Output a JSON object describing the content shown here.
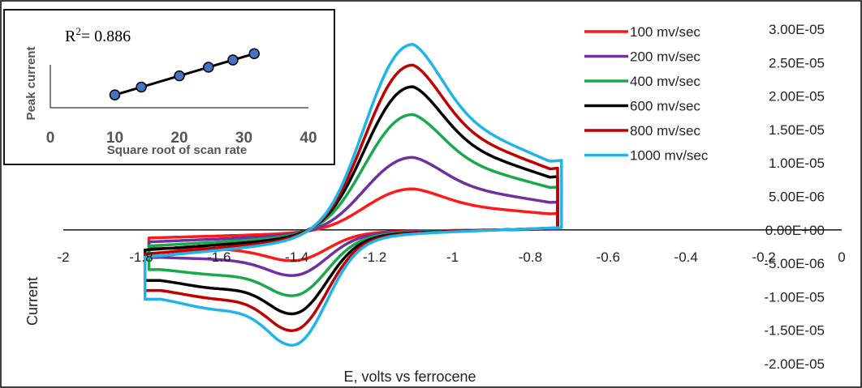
{
  "chart_data": [
    {
      "type": "line",
      "xlabel": "E, volts vs ferrocene",
      "ylabel": "Current",
      "xlim": [
        -2,
        0
      ],
      "ylim": [
        -2e-05,
        3e-05
      ],
      "x_ticks": [
        "-2",
        "-1.8",
        "-1.6",
        "-1.4",
        "-1.2",
        "-1",
        "-0.8",
        "-0.6",
        "-0.4",
        "-0.2",
        "0"
      ],
      "y_ticks": [
        "3.00E-05",
        "2.50E-05",
        "2.00E-05",
        "1.50E-05",
        "1.00E-05",
        "5.00E-06",
        "0.00E+00",
        "-5.00E-06",
        "-1.00E-05",
        "-1.50E-05",
        "-2.00E-05"
      ],
      "legend_position": "top-right",
      "series": [
        {
          "name": "100 mv/sec",
          "color": "#ff1a1a",
          "ia": 5.5e-06,
          "ic": -4.2e-06,
          "ic2": -2.6e-06,
          "sw": 2e-06,
          "vt": -1.78,
          "ve": -0.73
        },
        {
          "name": "200 mv/sec",
          "color": "#7030a0",
          "ia": 9.7e-06,
          "ic": -6.2e-06,
          "ic2": -4.2e-06,
          "sw": 3e-06,
          "vt": -1.78,
          "ve": -0.73
        },
        {
          "name": "400 mv/sec",
          "color": "#1aa84d",
          "ia": 1.54e-05,
          "ic": -9e-06,
          "ic2": -6.8e-06,
          "sw": 4e-06,
          "vt": -1.78,
          "ve": -0.73
        },
        {
          "name": "600 mv/sec",
          "color": "#000000",
          "ia": 1.91e-05,
          "ic": -1.15e-05,
          "ic2": -9e-06,
          "sw": 5e-06,
          "vt": -1.79,
          "ve": -0.73
        },
        {
          "name": "800 mv/sec",
          "color": "#c00000",
          "ia": 2.2e-05,
          "ic": -1.38e-05,
          "ic2": -1.05e-05,
          "sw": 6e-06,
          "vt": -1.79,
          "ve": -0.73
        },
        {
          "name": "1000 mv/sec",
          "color": "#1fb4ea",
          "ia": 2.48e-05,
          "ic": -1.58e-05,
          "ic2": -1.22e-05,
          "sw": 6.8e-06,
          "vt": -1.79,
          "ve": -0.72
        }
      ]
    },
    {
      "type": "scatter",
      "annotation": "R",
      "annotation_sup": "2",
      "annotation_value": "= 0.886",
      "xlabel": "Square root of scan rate",
      "ylabel": "Peak current",
      "xlim": [
        0,
        40
      ],
      "x_ticks": [
        "0",
        "10",
        "20",
        "30",
        "40"
      ],
      "trendline": true,
      "points": [
        {
          "x": 10,
          "y": 5.5
        },
        {
          "x": 14.1,
          "y": 9.7
        },
        {
          "x": 20,
          "y": 15.4
        },
        {
          "x": 24.5,
          "y": 19.1
        },
        {
          "x": 28.3,
          "y": 22.0
        },
        {
          "x": 31.6,
          "y": 24.8
        }
      ],
      "ylim": [
        0,
        35
      ]
    }
  ]
}
